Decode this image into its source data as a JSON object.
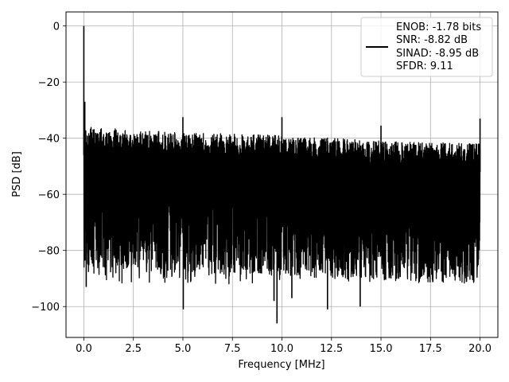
{
  "chart_data": {
    "type": "line",
    "xlabel": "Frequency [MHz]",
    "ylabel": "PSD [dB]",
    "xlim": [
      -0.9,
      20.9
    ],
    "ylim": [
      -111,
      5
    ],
    "xticks": [
      0.0,
      2.5,
      5.0,
      7.5,
      10.0,
      12.5,
      15.0,
      17.5,
      20.0
    ],
    "xtick_labels": [
      "0.0",
      "2.5",
      "5.0",
      "7.5",
      "10.0",
      "12.5",
      "15.0",
      "17.5",
      "20.0"
    ],
    "yticks": [
      0,
      -20,
      -40,
      -60,
      -80,
      -100
    ],
    "ytick_labels": [
      "0",
      "−20",
      "−40",
      "−60",
      "−80",
      "−100"
    ],
    "grid": true,
    "legend_position": "top-right",
    "line_color": "#000000",
    "legend": [
      "ENOB: -1.78 bits",
      "SNR: -8.82 dB",
      "SINAD: -8.95 dB",
      "SFDR: 9.11"
    ],
    "series": [
      {
        "description": "noisy PSD trace",
        "x_range": [
          0,
          20
        ],
        "noise_floor_top": [
          [
            0.2,
            -36
          ],
          [
            2.5,
            -37
          ],
          [
            5,
            -38
          ],
          [
            10,
            -39
          ],
          [
            15,
            -41
          ],
          [
            20,
            -42
          ]
        ],
        "noise_floor_bottom_typical": -80,
        "peaks": [
          {
            "x": 0.0,
            "y": 0
          },
          {
            "x": 0.05,
            "y": -27
          },
          {
            "x": 5.0,
            "y": -32.5
          },
          {
            "x": 10.0,
            "y": -32.5
          },
          {
            "x": 15.0,
            "y": -35.5
          },
          {
            "x": 20.0,
            "y": -33
          }
        ],
        "dips": [
          {
            "x": 0.12,
            "y": -93
          },
          {
            "x": 5.02,
            "y": -101
          },
          {
            "x": 9.75,
            "y": -106
          },
          {
            "x": 9.6,
            "y": -98
          },
          {
            "x": 10.5,
            "y": -97
          },
          {
            "x": 12.3,
            "y": -101
          },
          {
            "x": 13.95,
            "y": -100
          }
        ]
      }
    ]
  }
}
